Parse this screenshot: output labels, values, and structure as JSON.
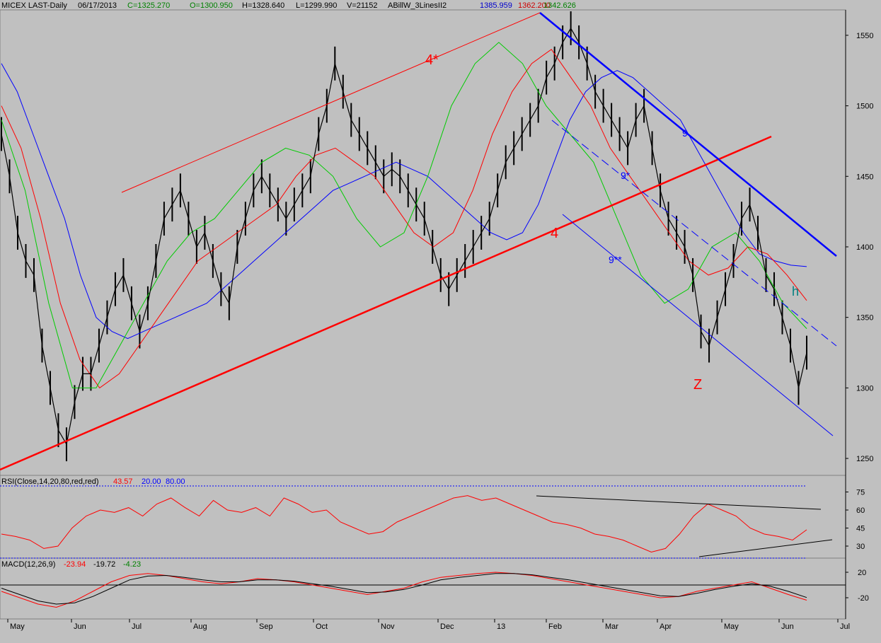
{
  "header": {
    "symbol": "MICEX LAST-Daily",
    "date": "06/17/2013",
    "close": "C=1325.270",
    "open": "O=1300.950",
    "high": "H=1328.640",
    "low": "L=1299.990",
    "volume": "V=21152",
    "indicator": "ABillW_3LinesII2",
    "ind_val_blue": "1385.959",
    "ind_val_red": "1362.200",
    "ind_val_green": "1342.626"
  },
  "rsi_header": {
    "label": "RSI(Close,14,20,80,red,red)",
    "value": "43.57",
    "low": "20.00",
    "high": "80.00"
  },
  "macd_header": {
    "label": "MACD(12,26,9)",
    "macd": "-23.94",
    "signal": "-19.72",
    "hist": "-4.23"
  },
  "annotations": {
    "wave_4_star": "4*",
    "wave_4": "4",
    "wave_9": "9",
    "wave_9_star": "9*",
    "wave_9_2star": "9**",
    "wave_z": "Z",
    "wave_h": "h"
  },
  "chart_data": {
    "type": "line",
    "price_axis": {
      "ticks": [
        1250,
        1300,
        1350,
        1400,
        1450,
        1500,
        1550
      ],
      "ylim": [
        1238,
        1568
      ]
    },
    "rsi_axis": {
      "ticks": [
        30,
        45,
        60,
        75
      ]
    },
    "macd_axis": {
      "ticks": [
        20,
        -20
      ]
    },
    "months": [
      "May",
      "Jun",
      "Jul",
      "Aug",
      "Sep",
      "Oct",
      "Nov",
      "Dec",
      "13",
      "Feb",
      "Mar",
      "Apr",
      "May",
      "Jun",
      "Jul"
    ],
    "price_close": [
      1480,
      1450,
      1410,
      1390,
      1380,
      1330,
      1300,
      1270,
      1260,
      1290,
      1310,
      1310,
      1330,
      1350,
      1370,
      1380,
      1360,
      1340,
      1360,
      1390,
      1420,
      1430,
      1440,
      1420,
      1400,
      1410,
      1390,
      1370,
      1360,
      1400,
      1420,
      1440,
      1450,
      1440,
      1430,
      1420,
      1430,
      1440,
      1450,
      1480,
      1500,
      1530,
      1510,
      1490,
      1480,
      1470,
      1460,
      1450,
      1455,
      1450,
      1440,
      1430,
      1420,
      1400,
      1380,
      1370,
      1380,
      1390,
      1400,
      1410,
      1420,
      1440,
      1460,
      1470,
      1480,
      1490,
      1500,
      1520,
      1530,
      1545,
      1555,
      1545,
      1530,
      1510,
      1500,
      1490,
      1480,
      1470,
      1490,
      1500,
      1470,
      1440,
      1420,
      1410,
      1400,
      1380,
      1340,
      1330,
      1350,
      1370,
      1390,
      1420,
      1430,
      1410,
      1380,
      1370,
      1350,
      1330,
      1300,
      1325
    ],
    "ma_blue": [
      1530,
      1510,
      1480,
      1450,
      1420,
      1380,
      1350,
      1340,
      1335,
      1340,
      1345,
      1350,
      1355,
      1360,
      1370,
      1380,
      1390,
      1400,
      1410,
      1420,
      1430,
      1440,
      1445,
      1450,
      1455,
      1460,
      1455,
      1450,
      1440,
      1430,
      1420,
      1410,
      1405,
      1410,
      1430,
      1460,
      1490,
      1510,
      1520,
      1525,
      1520,
      1510,
      1500,
      1490,
      1470,
      1450,
      1430,
      1410,
      1395,
      1390,
      1387,
      1386
    ],
    "ma_red": [
      1500,
      1470,
      1420,
      1360,
      1320,
      1300,
      1310,
      1330,
      1350,
      1370,
      1390,
      1400,
      1410,
      1420,
      1430,
      1450,
      1465,
      1470,
      1460,
      1450,
      1430,
      1410,
      1400,
      1410,
      1440,
      1480,
      1510,
      1530,
      1540,
      1520,
      1500,
      1470,
      1450,
      1430,
      1410,
      1390,
      1380,
      1385,
      1400,
      1395,
      1380,
      1362
    ],
    "ma_green": [
      1490,
      1440,
      1360,
      1300,
      1300,
      1330,
      1360,
      1390,
      1410,
      1420,
      1440,
      1460,
      1470,
      1465,
      1450,
      1420,
      1400,
      1410,
      1450,
      1500,
      1530,
      1545,
      1530,
      1500,
      1480,
      1460,
      1420,
      1380,
      1360,
      1370,
      1400,
      1410,
      1390,
      1360,
      1342
    ],
    "rsi_values": [
      40,
      38,
      35,
      28,
      30,
      45,
      55,
      60,
      58,
      62,
      55,
      65,
      70,
      62,
      55,
      68,
      60,
      58,
      62,
      55,
      70,
      65,
      58,
      60,
      50,
      45,
      40,
      42,
      50,
      55,
      60,
      65,
      70,
      72,
      68,
      70,
      65,
      60,
      55,
      50,
      48,
      45,
      40,
      38,
      35,
      30,
      25,
      28,
      40,
      55,
      65,
      60,
      55,
      45,
      40,
      38,
      35,
      43.57
    ],
    "macd_values": [
      -10,
      -20,
      -30,
      -35,
      -25,
      -10,
      5,
      15,
      18,
      15,
      10,
      5,
      2,
      5,
      10,
      8,
      5,
      0,
      -5,
      -10,
      -15,
      -10,
      -5,
      5,
      12,
      15,
      18,
      20,
      18,
      15,
      10,
      5,
      0,
      -5,
      -10,
      -15,
      -20,
      -18,
      -10,
      -5,
      0,
      5,
      -5,
      -15,
      -23.94
    ],
    "macd_signal": [
      -5,
      -15,
      -25,
      -30,
      -28,
      -18,
      -5,
      8,
      14,
      15,
      12,
      8,
      5,
      5,
      8,
      8,
      6,
      2,
      -2,
      -7,
      -12,
      -11,
      -7,
      0,
      8,
      12,
      15,
      18,
      18,
      16,
      12,
      8,
      3,
      -2,
      -7,
      -12,
      -17,
      -18,
      -13,
      -7,
      -2,
      2,
      -2,
      -10,
      -19.72
    ]
  }
}
